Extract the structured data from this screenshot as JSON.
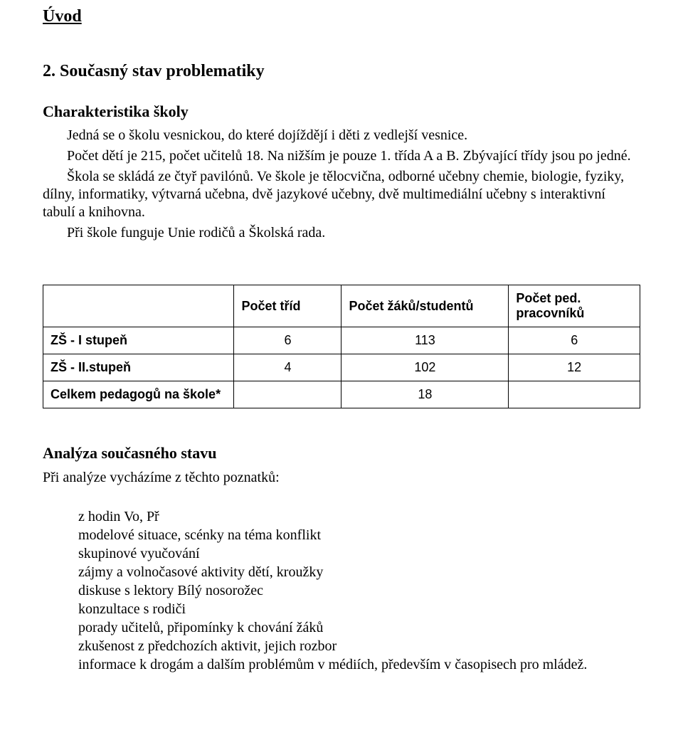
{
  "title_uvod": "Úvod",
  "section_heading": "2. Současný stav problematiky",
  "char_heading": "Charakteristika školy",
  "para1": "Jedná se o školu vesnickou, do které dojíždějí i děti z vedlejší vesnice.",
  "para2": "Počet dětí je 215, počet učitelů 18.  Na nižším je pouze 1. třída A a B. Zbývající  třídy jsou po jedné.",
  "para3": "Škola   se skládá ze čtyř pavilónů. Ve škole je tělocvična, odborné učebny chemie, biologie, fyziky, dílny, informatiky, výtvarná učebna, dvě jazykové učebny, dvě multimediální učebny s interaktivní tabulí  a knihovna.",
  "para4": "Při škole funguje  Unie rodičů a Školská rada.",
  "table": {
    "columns": [
      "",
      "Počet tříd",
      "Počet žáků/studentů",
      "Počet ped. pracovníků"
    ],
    "rows": [
      {
        "label": "ZŠ - I stupeň",
        "c1": "6",
        "c2": "113",
        "c3": "6"
      },
      {
        "label": "ZŠ - II.stupeň",
        "c1": "4",
        "c2": "102",
        "c3": "12"
      }
    ],
    "footer_label": "Celkem pedagogů na škole*",
    "footer_value": "18",
    "col_widths": [
      "32%",
      "18%",
      "28%",
      "22%"
    ],
    "border_color": "#000000",
    "font_family": "Arial",
    "fontsize": 18
  },
  "analysis_heading": "Analýza současného stavu",
  "analysis_lead": "Při analýze vycházíme z těchto poznatků:",
  "bullets": [
    "z hodin Vo, Př",
    "modelové situace, scénky na téma konflikt",
    "skupinové vyučování",
    "zájmy a volnočasové aktivity dětí, kroužky",
    "diskuse s lektory  Bílý nosorožec",
    "konzultace s rodiči",
    "porady učitelů, připomínky k chování žáků",
    "zkušenost z předchozích aktivit,  jejich rozbor",
    "informace k drogám a dalším problémům v médiích, především v časopisech pro mládež."
  ]
}
